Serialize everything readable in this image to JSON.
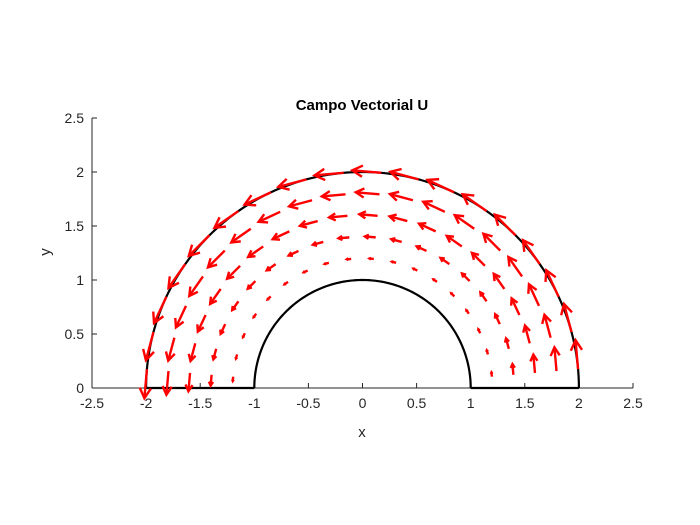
{
  "chart_data": {
    "type": "quiver",
    "title": "Campo Vectorial U",
    "xlabel": "x",
    "ylabel": "y",
    "xlim": [
      -2.5,
      2.5
    ],
    "ylim": [
      0,
      2.5
    ],
    "xticks": [
      "-2.5",
      "-2",
      "-1.5",
      "-1",
      "-0.5",
      "0",
      "0.5",
      "1",
      "1.5",
      "2",
      "2.5"
    ],
    "yticks": [
      "0",
      "0.5",
      "1",
      "1.5",
      "2",
      "2.5"
    ],
    "grid": false,
    "boundary": {
      "inner_radius": 1,
      "outer_radius": 2,
      "color": "#000000"
    },
    "field": {
      "color": "#ff0000",
      "radii": [
        1.2,
        1.4,
        1.6,
        1.8,
        2.0
      ],
      "angles_deg": [
        5,
        15,
        25,
        35,
        45,
        55,
        65,
        75,
        85,
        95,
        105,
        115,
        125,
        135,
        145,
        155,
        165,
        175
      ],
      "rotation": "counterclockwise",
      "magnitude_at_radius": [
        0.04,
        0.1,
        0.17,
        0.22,
        0.27
      ]
    }
  }
}
